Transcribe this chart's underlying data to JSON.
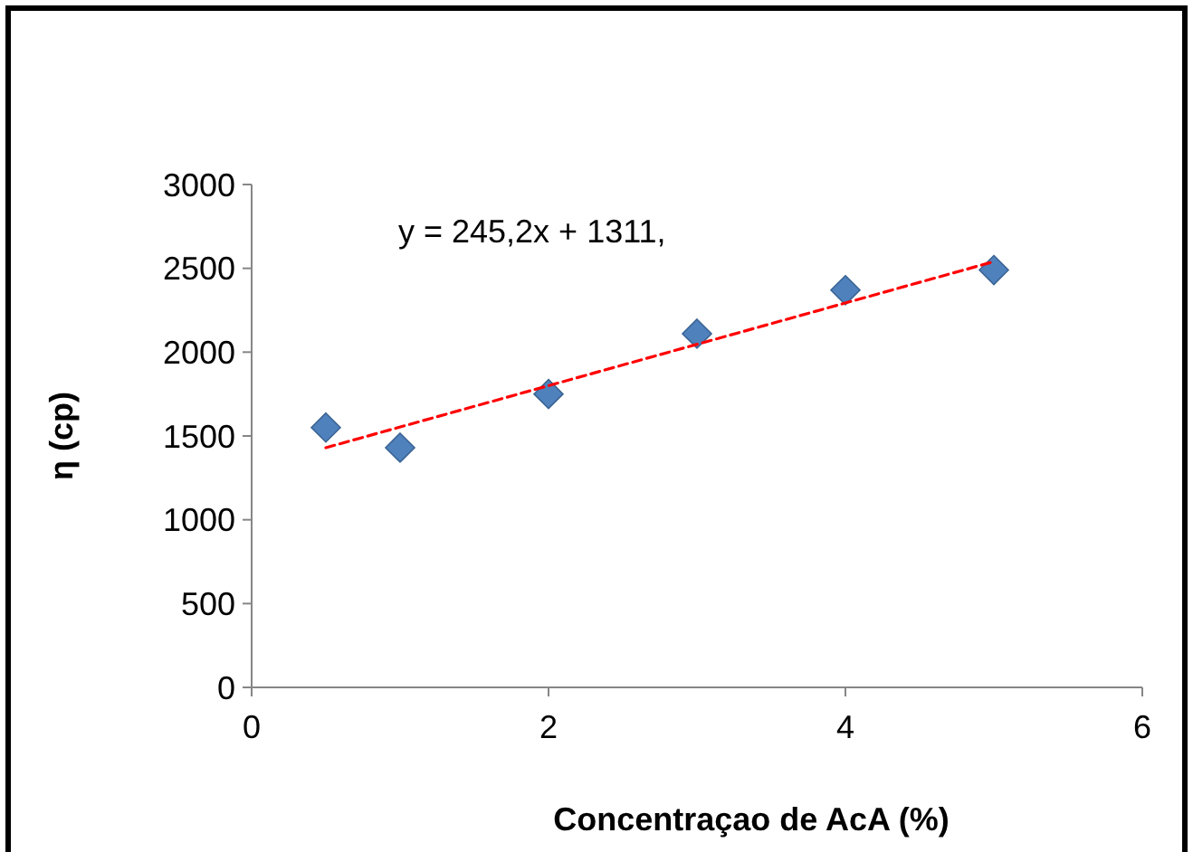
{
  "chart_data": {
    "type": "scatter",
    "xlabel": "Concentraçao de AcA (%)",
    "ylabel": "η (cp)",
    "annotations": [
      "y = 245,2x + 1311,"
    ],
    "xlim": [
      0,
      6
    ],
    "xticks": [
      0,
      2,
      4,
      6
    ],
    "ylim": [
      0,
      3000
    ],
    "yticks": [
      0,
      500,
      1000,
      1500,
      2000,
      2500,
      3000
    ],
    "grid": false,
    "marker": "diamond",
    "series": [
      {
        "color": "#4f81bd",
        "x": [
          0.5,
          1,
          2,
          3,
          4,
          5
        ],
        "values": [
          1550,
          1430,
          1750,
          2110,
          2370,
          2490
        ]
      },
      {
        "type": "line",
        "color": "#ff0000",
        "line_style": "dashed",
        "marker": "none",
        "x": [
          0.5,
          5
        ],
        "values": [
          1430,
          2540
        ]
      }
    ]
  }
}
